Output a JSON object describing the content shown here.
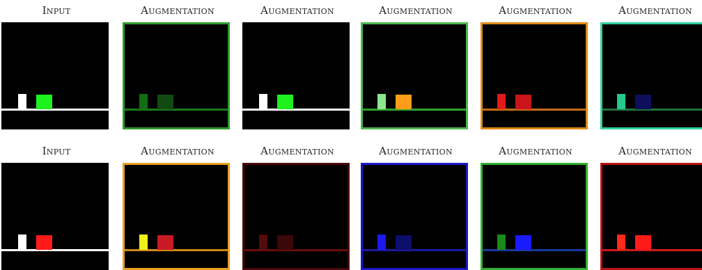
{
  "rows": [
    {
      "panels": [
        {
          "label": "Input",
          "floor": "#ffffff",
          "tall": "#ffffff",
          "wide": "#1ef21e",
          "border": null
        },
        {
          "label": "Augmentation",
          "floor": "#1a7a1a",
          "tall": "#136d13",
          "wide": "#114a11",
          "border": "#2e9c2e"
        },
        {
          "label": "Augmentation",
          "floor": "#ffffff",
          "tall": "#ffffff",
          "wide": "#1ef21e",
          "border": null
        },
        {
          "label": "Augmentation",
          "floor": "#2ea52e",
          "tall": "#8ee68e",
          "wide": "#ff9c1a",
          "border": "#4db84d"
        },
        {
          "label": "Augmentation",
          "floor": "#c86a1c",
          "tall": "#e01a1a",
          "wide": "#c8141a",
          "border": "#e08a14"
        },
        {
          "label": "Augmentation",
          "floor": "#23733c",
          "tall": "#26c88c",
          "wide": "#0d0f5a",
          "border": "#30d0a0"
        }
      ]
    },
    {
      "panels": [
        {
          "label": "Input",
          "floor": "#ffffff",
          "tall": "#ffffff",
          "wide": "#ff1a1a",
          "border": null
        },
        {
          "label": "Augmentation",
          "floor": "#d08a14",
          "tall": "#f0f01a",
          "wide": "#c81a24",
          "border": "#e8a020"
        },
        {
          "label": "Augmentation",
          "floor": "#6a0d0d",
          "tall": "#520c0c",
          "wide": "#3a0808",
          "border": "#4a0a0a"
        },
        {
          "label": "Augmentation",
          "floor": "#1a1aa0",
          "tall": "#1a1af0",
          "wide": "#0d0d6a",
          "border": "#1a1ac8"
        },
        {
          "label": "Augmentation",
          "floor": "#1a3aa0",
          "tall": "#1a8a1a",
          "wide": "#1a1aff",
          "border": "#30b030"
        },
        {
          "label": "Augmentation",
          "floor": "#d01a1a",
          "tall": "#ff2a1a",
          "wide": "#ff1a1a",
          "border": "#b81414"
        }
      ]
    }
  ]
}
